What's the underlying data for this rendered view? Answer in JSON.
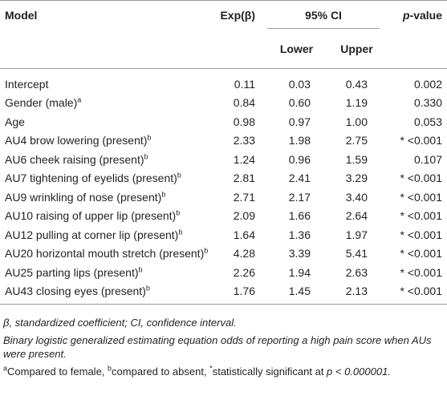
{
  "table": {
    "header": {
      "model": "Model",
      "exp": "Exp(β)",
      "ci": "95% CI",
      "lower": "Lower",
      "upper": "Upper",
      "p_italic": "p",
      "p_rest": "-value"
    },
    "rows": [
      {
        "label": "Intercept",
        "exp": "0.11",
        "lower": "0.03",
        "upper": "0.43",
        "p": "0.002"
      },
      {
        "label": "Gender (male)",
        "sup": "a",
        "exp": "0.84",
        "lower": "0.60",
        "upper": "1.19",
        "p": "0.330"
      },
      {
        "label": "Age",
        "exp": "0.98",
        "lower": "0.97",
        "upper": "1.00",
        "p": "0.053"
      },
      {
        "label": "AU4 brow lowering (present)",
        "sup": "b",
        "exp": "2.33",
        "lower": "1.98",
        "upper": "2.75",
        "p": "* <0.001"
      },
      {
        "label": "AU6 cheek raising (present)",
        "sup": "b",
        "exp": "1.24",
        "lower": "0.96",
        "upper": "1.59",
        "p": "0.107"
      },
      {
        "label": "AU7 tightening of eyelids (present)",
        "sup": "b",
        "exp": "2.81",
        "lower": "2.41",
        "upper": "3.29",
        "p": "* <0.001"
      },
      {
        "label": "AU9 wrinkling of nose (present)",
        "sup": "b",
        "exp": "2.71",
        "lower": "2.17",
        "upper": "3.40",
        "p": "* <0.001"
      },
      {
        "label": "AU10 raising of upper lip (present)",
        "sup": "b",
        "exp": "2.09",
        "lower": "1.66",
        "upper": "2.64",
        "p": "* <0.001"
      },
      {
        "label": "AU12 pulling at corner lip (present)",
        "sup": "b",
        "exp": "1.64",
        "lower": "1.36",
        "upper": "1.97",
        "p": "* <0.001"
      },
      {
        "label": "AU20 horizontal mouth stretch (present)",
        "sup": "b",
        "exp": "4.28",
        "lower": "3.39",
        "upper": "5.41",
        "p": "* <0.001"
      },
      {
        "label": "AU25 parting lips (present)",
        "sup": "b",
        "exp": "2.26",
        "lower": "1.94",
        "upper": "2.63",
        "p": "* <0.001"
      },
      {
        "label": "AU43 closing eyes (present)",
        "sup": "b",
        "exp": "1.76",
        "lower": "1.45",
        "upper": "2.13",
        "p": "* <0.001"
      }
    ]
  },
  "footnotes": [
    "β, standardized coefficient; CI, confidence interval.",
    "Binary logistic generalized estimating equation odds of reporting a high pain score when AUs were present.",
    [
      "a",
      "Compared to female, ",
      "b",
      "compared to absent, ",
      "*",
      "statistically significant at ",
      "p < 0.000001."
    ]
  ]
}
